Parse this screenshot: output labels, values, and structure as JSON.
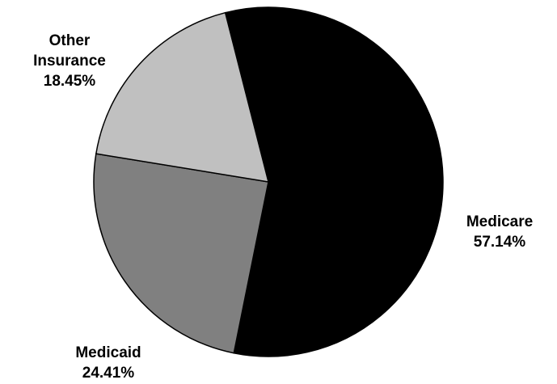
{
  "chart_data": {
    "type": "pie",
    "categories": [
      "Medicare",
      "Medicaid",
      "Other Insurance"
    ],
    "values": [
      57.14,
      24.41,
      18.45
    ],
    "labels": [
      {
        "name_lines": [
          "Medicare"
        ],
        "value_text": "57.14%"
      },
      {
        "name_lines": [
          "Medicaid"
        ],
        "value_text": "24.41%"
      },
      {
        "name_lines": [
          "Other",
          "Insurance"
        ],
        "value_text": "18.45%"
      }
    ],
    "colors": [
      "#000000",
      "#808080",
      "#c0c0c0"
    ],
    "legend": "none"
  }
}
